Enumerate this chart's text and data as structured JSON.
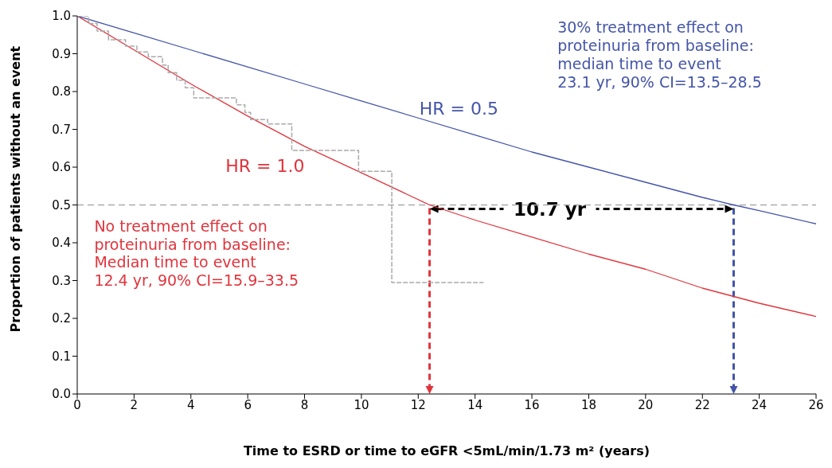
{
  "chart_data": {
    "type": "line",
    "xlabel": "Time to ESRD or time to eGFR <5mL/min/1.73 m² (years)",
    "ylabel": "Proportion of patients without an event",
    "xlim": [
      0,
      26
    ],
    "xticks": [
      0,
      2,
      4,
      6,
      8,
      10,
      12,
      14,
      16,
      18,
      20,
      22,
      24,
      26
    ],
    "ylim": [
      0,
      1
    ],
    "yticks": [
      {
        "value": 0,
        "label": "0.0"
      },
      {
        "value": 0.1,
        "label": "0.1"
      },
      {
        "value": 0.2,
        "label": "0.2"
      },
      {
        "value": 0.3,
        "label": "0.3"
      },
      {
        "value": 0.4,
        "label": "0.4"
      },
      {
        "value": 0.5,
        "label": "0.5"
      },
      {
        "value": 0.6,
        "label": "0.6"
      },
      {
        "value": 0.7,
        "label": "0.7"
      },
      {
        "value": 0.8,
        "label": "0.8"
      },
      {
        "value": 0.9,
        "label": "0.9"
      },
      {
        "value": 1,
        "label": "1.0"
      }
    ],
    "marker": "none",
    "series": [
      {
        "name": "HR = 1.0",
        "color": "#e0343c",
        "x": [
          0,
          2,
          4,
          6,
          8,
          10,
          12.4,
          14,
          16,
          18,
          20,
          22,
          24,
          26
        ],
        "values": [
          1,
          0.91,
          0.82,
          0.735,
          0.655,
          0.585,
          0.5,
          0.46,
          0.415,
          0.37,
          0.33,
          0.28,
          0.24,
          0.205
        ]
      },
      {
        "name": "HR = 0.5",
        "color": "#4455a8",
        "x": [
          0,
          2,
          4,
          6,
          8,
          10,
          12,
          14,
          16,
          18,
          20,
          22,
          23.1,
          24,
          26
        ],
        "values": [
          1,
          0.955,
          0.91,
          0.865,
          0.82,
          0.775,
          0.73,
          0.685,
          0.64,
          0.6,
          0.56,
          0.52,
          0.5,
          0.485,
          0.45
        ]
      },
      {
        "type": "step",
        "color": "#aaaaaa",
        "line_style": "dashed",
        "x": [
          0,
          0.4,
          0.7,
          1.1,
          1.7,
          2.1,
          2.5,
          3.0,
          3.2,
          3.5,
          3.8,
          4.1,
          5.6,
          5.9,
          6.1,
          6.7,
          7.55,
          9.9,
          11.07,
          14.3
        ],
        "values": [
          1,
          0.98,
          0.96,
          0.937,
          0.92,
          0.905,
          0.892,
          0.87,
          0.85,
          0.83,
          0.81,
          0.783,
          0.765,
          0.745,
          0.726,
          0.714,
          0.644,
          0.589,
          0.295,
          0.295
        ]
      }
    ],
    "ref_lines": [
      {
        "axis": "y",
        "value": 0.5,
        "color": "#aaaaaa",
        "line_style": "dashed"
      }
    ],
    "annotations": [
      "No treatment effect on\nproteinuria from baseline:\nMedian time to event\n12.4 yr, 90% CI=15.9–33.5",
      "30% treatment effect on\nproteinuria from baseline:\nmedian time to event\n23.1 yr, 90% CI=13.5–28.5",
      "10.7 yr"
    ]
  }
}
